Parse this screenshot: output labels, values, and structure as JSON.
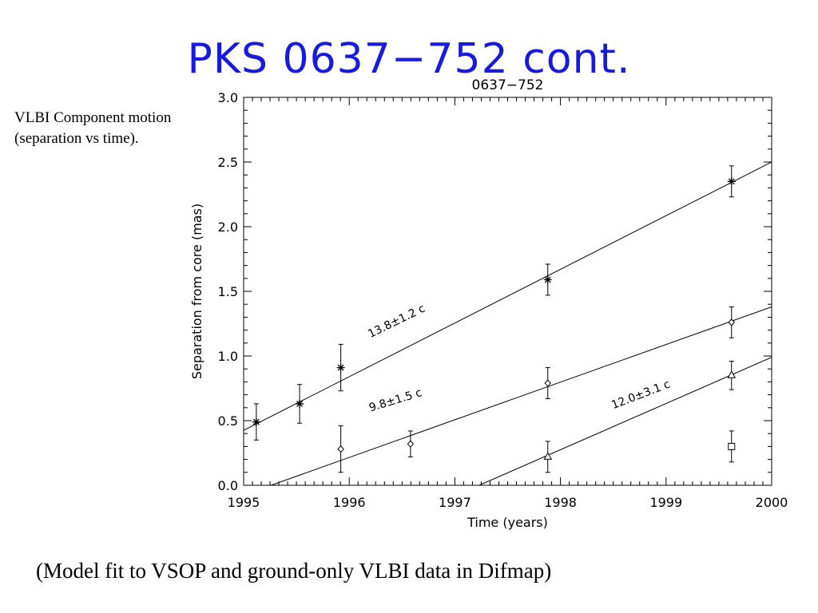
{
  "slide": {
    "title": "PKS 0637−752 cont.",
    "caption_line1": "VLBI Component motion",
    "caption_line2": "(separation vs time).",
    "bottom_caption": "(Model fit to VSOP and ground-only VLBI data in Difmap)"
  },
  "chart_data": {
    "type": "scatter",
    "title": "0637−752",
    "xlabel": "Time (years)",
    "ylabel": "Separation from core (mas)",
    "xlim": [
      1995,
      2000
    ],
    "ylim": [
      0.0,
      3.0
    ],
    "xticks": [
      1995,
      1996,
      1997,
      1998,
      1999,
      2000
    ],
    "yticks": [
      "0.0",
      "0.5",
      "1.0",
      "1.5",
      "2.0",
      "2.5",
      "3.0"
    ],
    "series": [
      {
        "marker": "asterisk",
        "points": [
          {
            "x": 1995.12,
            "y": 0.49,
            "err": 0.14
          },
          {
            "x": 1995.53,
            "y": 0.63,
            "err": 0.15
          },
          {
            "x": 1995.92,
            "y": 0.91,
            "err": 0.18
          },
          {
            "x": 1997.88,
            "y": 1.59,
            "err": 0.12
          },
          {
            "x": 1999.62,
            "y": 2.35,
            "err": 0.12
          }
        ],
        "fit": {
          "x": [
            1995.0,
            2000.0
          ],
          "y": [
            0.425,
            2.5
          ]
        },
        "fit_label": "13.8±1.2 c"
      },
      {
        "marker": "diamond",
        "points": [
          {
            "x": 1995.92,
            "y": 0.28,
            "err": 0.18
          },
          {
            "x": 1996.58,
            "y": 0.32,
            "err": 0.1
          },
          {
            "x": 1997.88,
            "y": 0.79,
            "err": 0.12
          },
          {
            "x": 1999.62,
            "y": 1.26,
            "err": 0.12
          }
        ],
        "fit": {
          "x": [
            1995.26,
            2000.0
          ],
          "y": [
            0.0,
            1.38
          ]
        },
        "fit_label": "9.8±1.5 c"
      },
      {
        "marker": "triangle",
        "points": [
          {
            "x": 1997.88,
            "y": 0.22,
            "err": 0.12
          },
          {
            "x": 1999.62,
            "y": 0.85,
            "err": 0.11
          }
        ],
        "fit": {
          "x": [
            1997.23,
            2000.0
          ],
          "y": [
            0.0,
            0.99
          ]
        },
        "fit_label": "12.0±3.1 c"
      },
      {
        "marker": "square",
        "points": [
          {
            "x": 1999.62,
            "y": 0.3,
            "err": 0.12
          }
        ]
      }
    ]
  }
}
